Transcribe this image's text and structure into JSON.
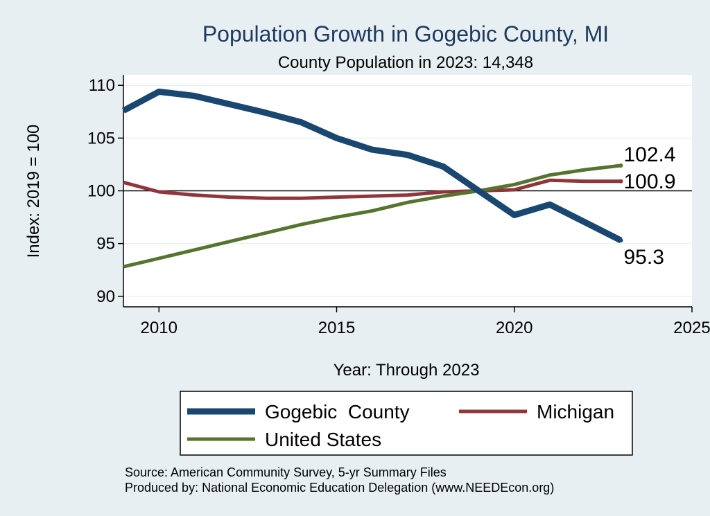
{
  "chart_data": {
    "type": "line",
    "title": "Population Growth in Gogebic County, MI",
    "subtitle": "County Population in 2023: 14,348",
    "xlabel": "Year: Through 2023",
    "ylabel": "Index: 2019 = 100",
    "xlim": [
      2009,
      2025
    ],
    "ylim": [
      89,
      111
    ],
    "x_ticks": [
      "2010",
      "2015",
      "2020",
      "2025"
    ],
    "y_ticks": [
      "90",
      "95",
      "100",
      "105",
      "110"
    ],
    "reference_line": 100,
    "grid": true,
    "legend_position": "bottom",
    "x": [
      2009,
      2010,
      2011,
      2012,
      2013,
      2014,
      2015,
      2016,
      2017,
      2018,
      2019,
      2020,
      2021,
      2022,
      2023
    ],
    "series": [
      {
        "name": "Gogebic  County",
        "color": "#1a476f",
        "values": [
          107.6,
          109.4,
          109.0,
          108.2,
          107.4,
          106.5,
          105.0,
          103.9,
          103.4,
          102.3,
          100.0,
          97.7,
          98.7,
          97.0,
          95.3
        ],
        "end_label": "95.3"
      },
      {
        "name": "Michigan",
        "color": "#90353b",
        "values": [
          100.8,
          99.9,
          99.6,
          99.4,
          99.3,
          99.3,
          99.4,
          99.5,
          99.6,
          99.9,
          100.0,
          100.1,
          101.0,
          100.9,
          100.9
        ],
        "end_label": "100.9"
      },
      {
        "name": "United States",
        "color": "#55752f",
        "values": [
          92.8,
          93.6,
          94.4,
          95.2,
          96.0,
          96.8,
          97.5,
          98.1,
          98.9,
          99.5,
          100.0,
          100.6,
          101.5,
          102.0,
          102.4
        ],
        "end_label": "102.4"
      }
    ],
    "notes": [
      "Source: American Community Survey, 5-yr Summary Files",
      "Produced by: National Economic Education Delegation (www.NEEDEcon.org)"
    ]
  }
}
